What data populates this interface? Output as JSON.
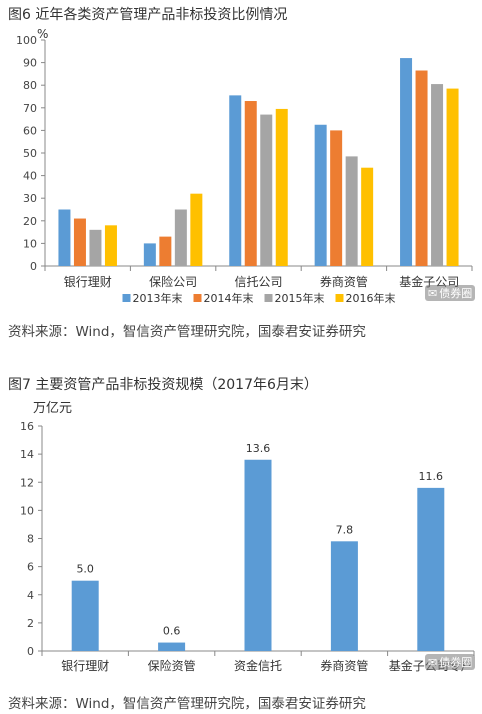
{
  "figure1": {
    "title": "图6  近年各类资产管理产品非标投资比例情况",
    "source": "资料来源：Wind，智信资产管理研究院，国泰君安证券研究",
    "watermark": "债券圈"
  },
  "figure2": {
    "title": "图7  主要资管产品非标投资规模（2017年6月末）",
    "source": "资料来源：Wind，智信资产管理研究院，国泰君安证券研究",
    "watermark": "债券圈"
  },
  "chart_data": [
    {
      "type": "bar",
      "title": "图6  近年各类资产管理产品非标投资比例情况",
      "ylabel": "%",
      "ylim": [
        0,
        100
      ],
      "yticks": [
        0,
        10,
        20,
        30,
        40,
        50,
        60,
        70,
        80,
        90,
        100
      ],
      "categories": [
        "银行理财",
        "保险公司",
        "信托公司",
        "券商资管",
        "基金子公司"
      ],
      "series": [
        {
          "name": "2013年末",
          "color": "#5b9bd5",
          "values": [
            25,
            10,
            75.5,
            62.5,
            92
          ]
        },
        {
          "name": "2014年末",
          "color": "#ed7d31",
          "values": [
            21,
            13,
            73,
            60,
            86.5
          ]
        },
        {
          "name": "2015年末",
          "color": "#a5a5a5",
          "values": [
            16,
            25,
            67,
            48.5,
            80.5
          ]
        },
        {
          "name": "2016年末",
          "color": "#ffc000",
          "values": [
            18,
            32,
            69.5,
            43.5,
            78.5
          ]
        }
      ],
      "legend_position": "bottom",
      "grid": false
    },
    {
      "type": "bar",
      "title": "图7  主要资管产品非标投资规模（2017年6月末）",
      "ylabel": "万亿元",
      "ylim": [
        0,
        16
      ],
      "yticks": [
        0,
        2,
        4,
        6,
        8,
        10,
        12,
        14,
        16
      ],
      "categories": [
        "银行理财",
        "保险资管",
        "资金信托",
        "券商资管",
        "基金子公司专户"
      ],
      "values": [
        5.0,
        0.6,
        13.6,
        7.8,
        11.6
      ],
      "value_labels": [
        "5.0",
        "0.6",
        "13.6",
        "7.8",
        "11.6"
      ],
      "color": "#5b9bd5",
      "grid": false
    }
  ]
}
